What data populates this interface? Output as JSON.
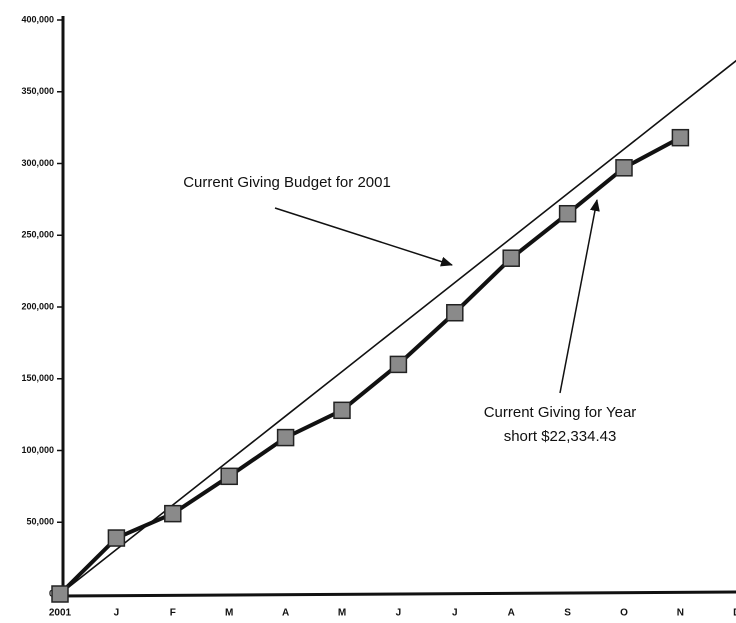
{
  "chart_data": {
    "type": "line",
    "annotations": [
      "Current Giving Budget for 2001",
      "Current Giving for Year",
      "short $22,334.43"
    ],
    "categories": [
      "2001",
      "J",
      "F",
      "M",
      "A",
      "M",
      "J",
      "J",
      "A",
      "S",
      "O",
      "N",
      "D"
    ],
    "series": [
      {
        "color": "#111111",
        "values": [
          0,
          31000,
          62000,
          93000,
          124000,
          155000,
          186000,
          217000,
          248000,
          279000,
          310000,
          341000,
          372000
        ]
      },
      {
        "color": "#111111",
        "marker": "square",
        "marker_color": "#8a8a8a",
        "values": [
          0,
          39000,
          56000,
          82000,
          109000,
          128000,
          160000,
          196000,
          234000,
          265000,
          297000,
          318000,
          null
        ]
      }
    ],
    "ylim": [
      0,
      400000
    ],
    "yticks": [
      0,
      {
        "value": 50000,
        "label": "50,000"
      },
      {
        "value": 100000,
        "label": "100,000"
      },
      {
        "value": 150000,
        "label": "150,000"
      },
      {
        "value": 200000,
        "label": "200,000"
      },
      {
        "value": 250000,
        "label": "250,000"
      },
      {
        "value": 300000,
        "label": "300,000"
      },
      {
        "value": 350000,
        "label": "350,000"
      },
      {
        "value": 400000,
        "label": "400,000"
      }
    ]
  }
}
